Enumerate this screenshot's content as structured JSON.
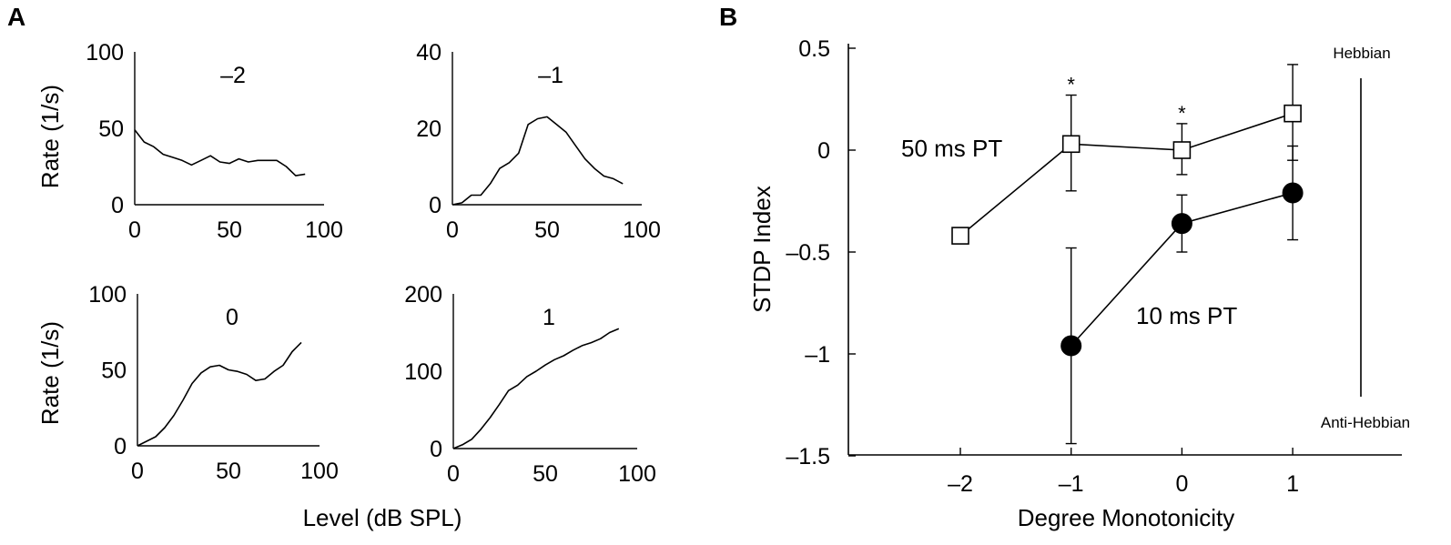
{
  "panels": {
    "a_letter": "A",
    "b_letter": "B"
  },
  "panel_a": {
    "ylabel": "Rate (1/s)",
    "xlabel": "Level (dB SPL)",
    "x_ticks": [
      0,
      50,
      100
    ],
    "xlim": [
      0,
      100
    ]
  },
  "panel_b": {
    "annotations": {
      "hebbian": "Hebbian",
      "anti_hebbian": "Anti-Hebbian",
      "series_50": "50 ms PT",
      "series_10": "10 ms PT",
      "star": "*"
    }
  },
  "chart_data": [
    {
      "type": "line",
      "title": "–2",
      "xlabel": "",
      "ylabel": "Rate (1/s)",
      "xlim": [
        0,
        100
      ],
      "ylim": [
        0,
        100
      ],
      "x_ticks": [
        0,
        50,
        100
      ],
      "y_ticks": [
        0,
        50,
        100
      ],
      "x": [
        0,
        5,
        10,
        15,
        20,
        25,
        30,
        35,
        40,
        45,
        50,
        55,
        60,
        65,
        70,
        75,
        80,
        85,
        90
      ],
      "y": [
        49,
        41,
        38,
        33,
        31,
        29,
        26,
        29,
        32,
        28,
        27,
        30,
        28,
        29,
        29,
        29,
        25,
        19,
        20
      ]
    },
    {
      "type": "line",
      "title": "–1",
      "xlabel": "",
      "ylabel": "",
      "xlim": [
        0,
        100
      ],
      "ylim": [
        0,
        40
      ],
      "x_ticks": [
        0,
        50,
        100
      ],
      "y_ticks": [
        0,
        20,
        40
      ],
      "x": [
        0,
        5,
        10,
        15,
        20,
        25,
        30,
        35,
        40,
        45,
        50,
        55,
        60,
        65,
        70,
        75,
        80,
        85,
        90
      ],
      "y": [
        0,
        0.5,
        2.5,
        2.5,
        5.5,
        9.5,
        11,
        13.5,
        21,
        22.5,
        23,
        21,
        19,
        15.5,
        12,
        9.5,
        7.5,
        6.8,
        5.5
      ]
    },
    {
      "type": "line",
      "title": "0",
      "xlabel": "Level (dB SPL)",
      "ylabel": "Rate (1/s)",
      "xlim": [
        0,
        100
      ],
      "ylim": [
        0,
        100
      ],
      "x_ticks": [
        0,
        50,
        100
      ],
      "y_ticks": [
        0,
        50,
        100
      ],
      "x": [
        0,
        5,
        10,
        15,
        20,
        25,
        30,
        35,
        40,
        45,
        50,
        55,
        60,
        65,
        70,
        75,
        80,
        85,
        90
      ],
      "y": [
        0,
        3,
        6,
        12,
        20,
        30,
        41,
        48,
        52,
        53,
        50,
        49,
        47,
        43,
        44,
        49,
        53,
        62,
        68
      ]
    },
    {
      "type": "line",
      "title": "1",
      "xlabel": "Level (dB SPL)",
      "ylabel": "",
      "xlim": [
        0,
        100
      ],
      "ylim": [
        0,
        200
      ],
      "x_ticks": [
        0,
        50,
        100
      ],
      "y_ticks": [
        0,
        100,
        200
      ],
      "x": [
        0,
        5,
        10,
        15,
        20,
        25,
        30,
        35,
        40,
        45,
        50,
        55,
        60,
        65,
        70,
        75,
        80,
        85,
        90
      ],
      "y": [
        0,
        5,
        12,
        25,
        40,
        57,
        75,
        82,
        93,
        100,
        108,
        115,
        120,
        127,
        133,
        137,
        142,
        150,
        155
      ]
    },
    {
      "type": "scatter",
      "title": "",
      "xlabel": "Degree Monotonicity",
      "ylabel": "STDP Index",
      "xlim": [
        -3,
        1.8
      ],
      "ylim": [
        -1.5,
        0.5
      ],
      "x_ticks": [
        -2,
        -1,
        0,
        1
      ],
      "y_ticks": [
        -1.5,
        -1,
        -0.5,
        0,
        0.5
      ],
      "x_tick_labels": [
        "–2",
        "–1",
        "0",
        "1"
      ],
      "y_tick_labels": [
        "–1.5",
        "–1",
        "–0.5",
        "0",
        "0.5"
      ],
      "series": [
        {
          "name": "50 ms PT",
          "marker": "open-square",
          "x": [
            -2,
            -1,
            0,
            1
          ],
          "y": [
            -0.42,
            0.03,
            0.0,
            0.18
          ],
          "err_low": [
            null,
            -0.2,
            -0.12,
            -0.05
          ],
          "err_high": [
            null,
            0.27,
            0.13,
            0.42
          ],
          "significant": [
            false,
            true,
            true,
            false
          ]
        },
        {
          "name": "10 ms PT",
          "marker": "filled-circle",
          "x": [
            -1,
            0,
            1
          ],
          "y": [
            -0.96,
            -0.36,
            -0.21
          ],
          "err_low": [
            -1.44,
            -0.5,
            -0.44
          ],
          "err_high": [
            -0.48,
            -0.22,
            0.02
          ],
          "significant": [
            false,
            false,
            false
          ]
        }
      ]
    }
  ]
}
